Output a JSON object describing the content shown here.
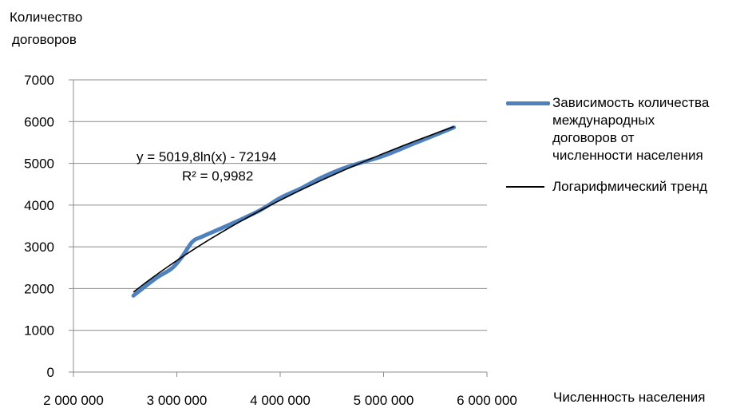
{
  "chart_data": {
    "type": "line",
    "title": "",
    "ylabel": [
      "Количество",
      "договоров"
    ],
    "xlabel": "Численность населения",
    "xlim": [
      2000000,
      6000000
    ],
    "ylim": [
      0,
      7000
    ],
    "x_ticks": [
      2000000,
      3000000,
      4000000,
      5000000,
      6000000
    ],
    "x_tick_labels": [
      "2 000 000",
      "3 000 000",
      "4 000 000",
      "5 000 000",
      "6 000 000"
    ],
    "y_ticks": [
      0,
      1000,
      2000,
      3000,
      4000,
      5000,
      6000,
      7000
    ],
    "y_tick_labels": [
      "0",
      "1000",
      "2000",
      "3000",
      "4000",
      "5000",
      "6000",
      "7000"
    ],
    "grid": "horizontal",
    "legend_position": "right",
    "series": [
      {
        "name": "Зависимость количества международных договоров от численности населения",
        "color": "#4f81bd",
        "x": [
          2580000,
          2800000,
          2950000,
          3050000,
          3150000,
          3250000,
          3500000,
          3800000,
          4000000,
          4200000,
          4400000,
          4600000,
          4800000,
          5000000,
          5300000,
          5500000,
          5680000
        ],
        "y": [
          1830,
          2250,
          2480,
          2760,
          3120,
          3250,
          3520,
          3870,
          4170,
          4400,
          4660,
          4870,
          5030,
          5180,
          5480,
          5680,
          5860
        ]
      },
      {
        "name": "Логарифмический тренд",
        "color": "#000000",
        "trendline": {
          "type": "logarithmic",
          "a": 5019.8,
          "b": -72194,
          "x_from": 2580000,
          "x_to": 5680000
        }
      }
    ],
    "annotations": {
      "equation": "y = 5019,8ln(x) - 72194",
      "r_squared": "R² = 0,9982"
    },
    "legend": [
      "Зависимость количества",
      "международных",
      "договоров от",
      "численности населения"
    ]
  }
}
